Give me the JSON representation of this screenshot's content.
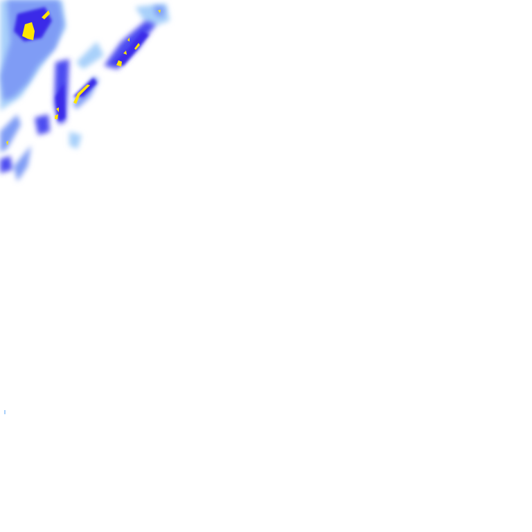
{
  "map": {
    "type": "precipitation-radar-tile",
    "colors": {
      "background": "#ffffff",
      "light": "#a8d0fa",
      "light_medium": "#7f9cf5",
      "medium": "#4c4cf0",
      "heavy": "#3a2ae8",
      "intense": "#ffe600",
      "intense_core": "#f0b400"
    }
  }
}
